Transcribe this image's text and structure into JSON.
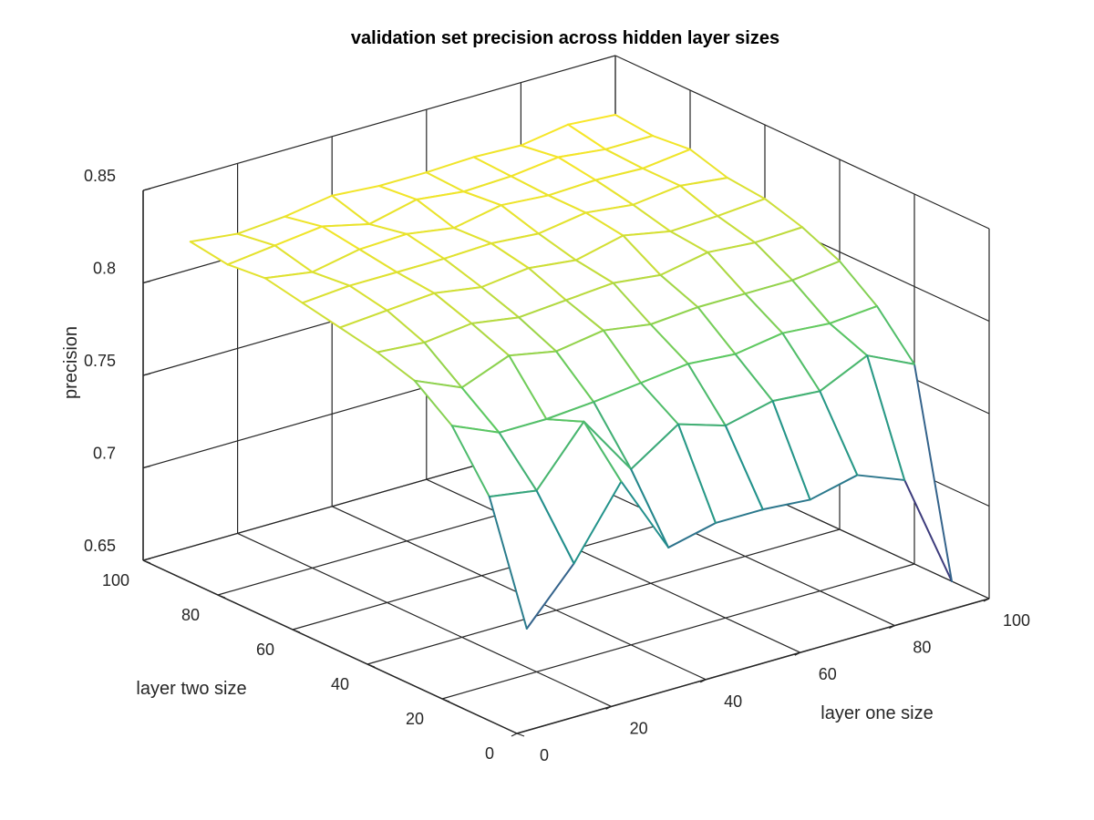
{
  "chart_data": {
    "type": "surface",
    "title": "validation set precision across hidden layer sizes",
    "xlabel": "layer one size",
    "ylabel": "layer two size",
    "zlabel": "precision",
    "xlim": [
      0,
      100
    ],
    "ylim": [
      0,
      100
    ],
    "zlim": [
      0.65,
      0.85
    ],
    "xticks": [
      0,
      20,
      40,
      60,
      80,
      100
    ],
    "yticks": [
      0,
      20,
      40,
      60,
      80,
      100
    ],
    "zticks": [
      0.65,
      0.7,
      0.75,
      0.8,
      0.85
    ],
    "xtick_labels": [
      "0",
      "20",
      "40",
      "60",
      "80",
      "100"
    ],
    "ytick_labels": [
      "0",
      "20",
      "40",
      "60",
      "80",
      "100"
    ],
    "ztick_labels": [
      "0.65",
      "0.7",
      "0.75",
      "0.8",
      "0.85"
    ],
    "grid": true,
    "colormap": "viridis",
    "x": [
      10,
      20,
      30,
      40,
      50,
      60,
      70,
      80,
      90,
      100
    ],
    "y": [
      10,
      20,
      30,
      40,
      50,
      60,
      70,
      80,
      90,
      100
    ],
    "z": [
      [
        0.69,
        0.752,
        0.781,
        0.796,
        0.802,
        0.806,
        0.81,
        0.814,
        0.812,
        0.815
      ],
      [
        0.718,
        0.748,
        0.77,
        0.785,
        0.8,
        0.808,
        0.812,
        0.81,
        0.815,
        0.812
      ],
      [
        0.755,
        0.778,
        0.77,
        0.795,
        0.803,
        0.81,
        0.812,
        0.815,
        0.818,
        0.814
      ],
      [
        0.712,
        0.745,
        0.772,
        0.79,
        0.799,
        0.806,
        0.812,
        0.816,
        0.812,
        0.818
      ],
      [
        0.718,
        0.762,
        0.775,
        0.794,
        0.801,
        0.809,
        0.813,
        0.812,
        0.818,
        0.816
      ],
      [
        0.718,
        0.754,
        0.778,
        0.79,
        0.803,
        0.806,
        0.811,
        0.817,
        0.815,
        0.816
      ],
      [
        0.716,
        0.76,
        0.776,
        0.792,
        0.8,
        0.812,
        0.815,
        0.815,
        0.816,
        0.817
      ],
      [
        0.722,
        0.758,
        0.78,
        0.792,
        0.805,
        0.807,
        0.812,
        0.816,
        0.819,
        0.816
      ],
      [
        0.712,
        0.77,
        0.778,
        0.792,
        0.803,
        0.808,
        0.815,
        0.815,
        0.816,
        0.82
      ],
      [
        0.65,
        0.758,
        0.78,
        0.795,
        0.804,
        0.81,
        0.812,
        0.818,
        0.816,
        0.818
      ]
    ]
  }
}
